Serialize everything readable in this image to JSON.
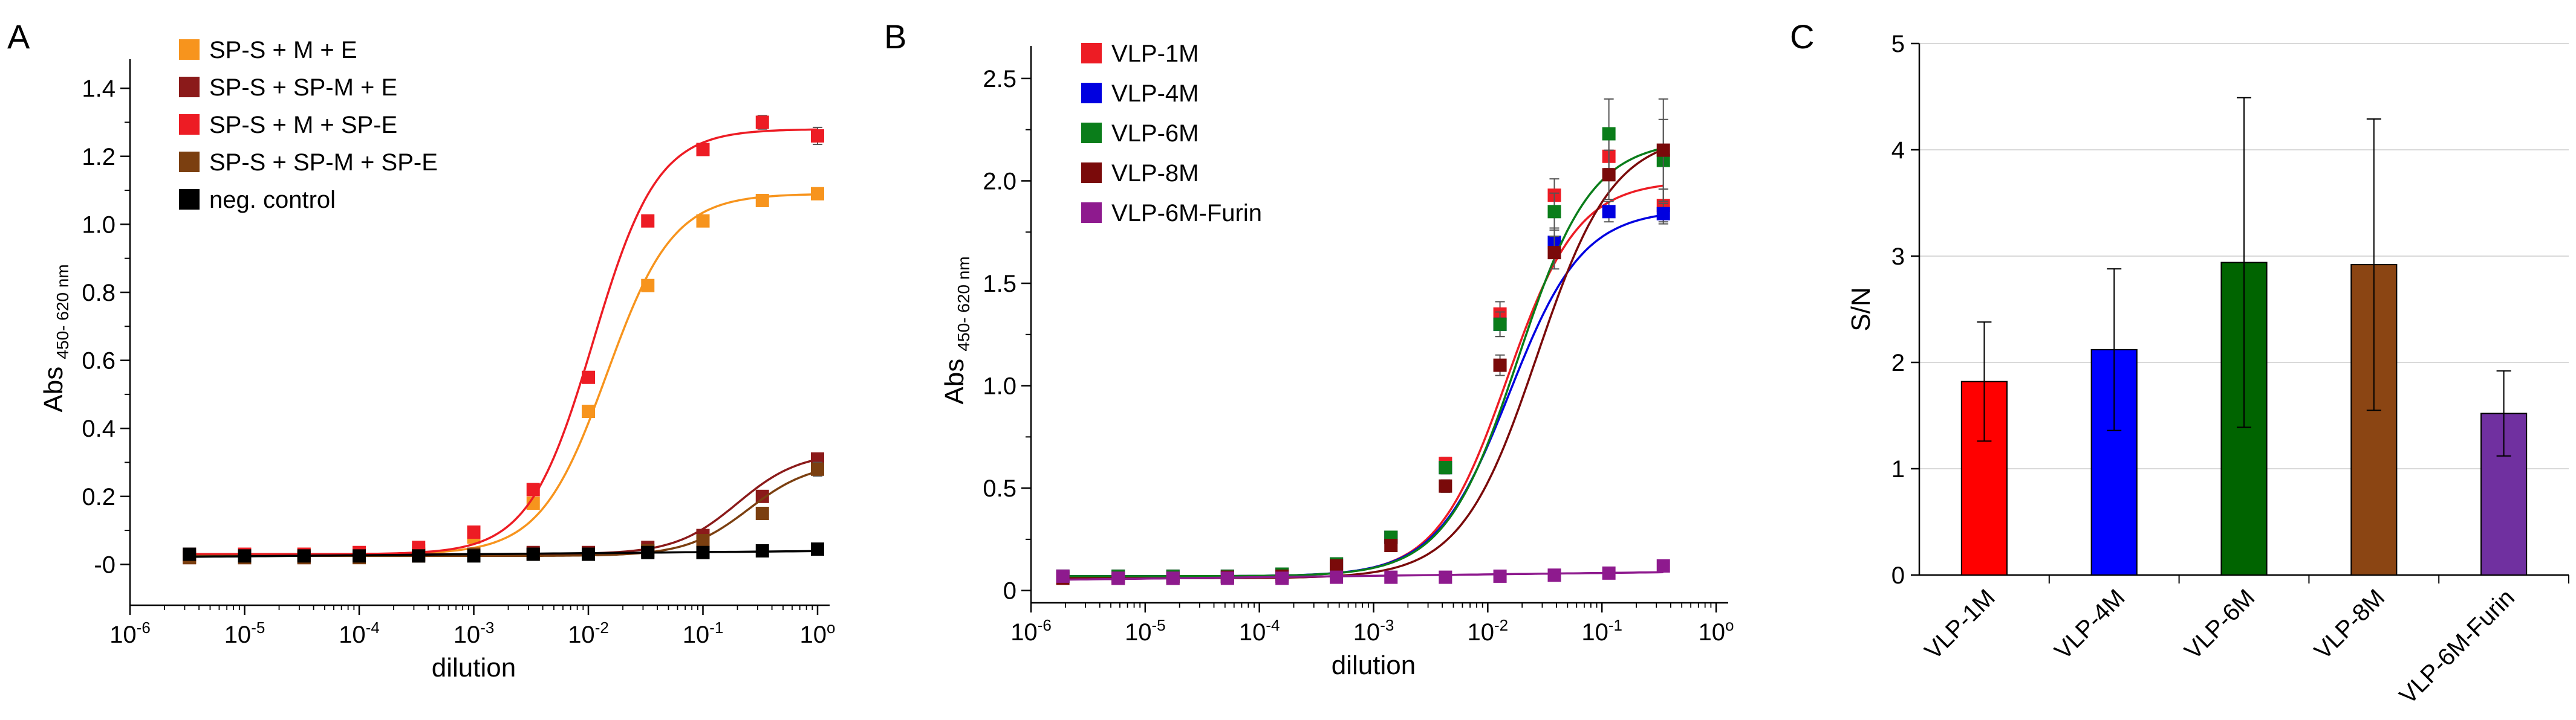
{
  "chart_data": [
    {
      "panel": "A",
      "type": "scatter",
      "xscale": "log",
      "xlabel": "dilution",
      "ylabel": "Abs",
      "ylabel_sub": "450- 620 nm",
      "xlim": [
        1e-06,
        1
      ],
      "ylim": [
        -0.12,
        1.45
      ],
      "xticks": [
        1e-06,
        1e-05,
        0.0001,
        0.001,
        0.01,
        0.1,
        1
      ],
      "xtick_bases": [
        "10",
        "10",
        "10",
        "10",
        "10",
        "10",
        "10"
      ],
      "xtick_exps": [
        "-6",
        "-5",
        "-4",
        "-3",
        "-2",
        "-1",
        "o"
      ],
      "yticks": [
        0,
        0.2,
        0.4,
        0.6,
        0.8,
        1.0,
        1.2,
        1.4
      ],
      "ytick_labels": [
        "-0",
        "0.2",
        "0.4",
        "0.6",
        "0.8",
        "1.0",
        "1.2",
        "1.4"
      ],
      "legend_position": "top-left",
      "x": [
        3.3e-06,
        1e-05,
        3.3e-05,
        0.0001,
        0.00033,
        0.001,
        0.0033,
        0.01,
        0.033,
        0.1,
        0.33,
        1
      ],
      "series": [
        {
          "name": "SP-S + M + E",
          "color": "#f7941d",
          "values": [
            0.025,
            0.025,
            0.03,
            0.03,
            0.04,
            0.08,
            0.18,
            0.45,
            0.82,
            1.01,
            1.07,
            1.09
          ],
          "err": [
            0.005,
            0.005,
            0.005,
            0.005,
            0.005,
            0.01,
            0.01,
            0.01,
            0.015,
            0.01,
            0.01,
            0.01
          ],
          "fit": {
            "bottom": 0.03,
            "top": 1.09,
            "ec50": 0.0145,
            "hill": 1.5
          }
        },
        {
          "name": "SP-S + SP-M + E",
          "color": "#8b1a1a",
          "values": [
            0.02,
            0.02,
            0.02,
            0.025,
            0.03,
            0.03,
            0.035,
            0.035,
            0.05,
            0.085,
            0.2,
            0.31
          ],
          "err": [
            0.005,
            0.005,
            0.005,
            0.005,
            0.005,
            0.005,
            0.005,
            0.005,
            0.005,
            0.01,
            0.01,
            0.015
          ],
          "fit": {
            "bottom": 0.03,
            "top": 0.33,
            "ec50": 0.2,
            "hill": 1.6
          }
        },
        {
          "name": "SP-S + M + SP-E",
          "color": "#ed1c24",
          "values": [
            0.03,
            0.03,
            0.03,
            0.035,
            0.05,
            0.095,
            0.22,
            0.55,
            1.01,
            1.22,
            1.3,
            1.26
          ],
          "err": [
            0.005,
            0.005,
            0.005,
            0.005,
            0.005,
            0.01,
            0.01,
            0.015,
            0.015,
            0.015,
            0.02,
            0.025
          ],
          "fit": {
            "bottom": 0.03,
            "top": 1.28,
            "ec50": 0.011,
            "hill": 1.55
          }
        },
        {
          "name": "SP-S + SP-M + SP-E",
          "color": "#7b3f10",
          "values": [
            0.02,
            0.02,
            0.02,
            0.02,
            0.025,
            0.03,
            0.03,
            0.03,
            0.04,
            0.07,
            0.15,
            0.28
          ],
          "err": [
            0.005,
            0.005,
            0.005,
            0.005,
            0.005,
            0.005,
            0.005,
            0.005,
            0.005,
            0.01,
            0.01,
            0.02
          ],
          "fit": {
            "bottom": 0.025,
            "top": 0.3,
            "ec50": 0.25,
            "hill": 1.6
          }
        },
        {
          "name": "neg. control",
          "color": "#000000",
          "values": [
            0.03,
            0.025,
            0.025,
            0.025,
            0.025,
            0.025,
            0.03,
            0.03,
            0.035,
            0.035,
            0.04,
            0.045
          ],
          "err": [
            0.003,
            0.003,
            0.003,
            0.003,
            0.003,
            0.003,
            0.003,
            0.003,
            0.003,
            0.003,
            0.003,
            0.003
          ],
          "fit": {
            "linear": true
          }
        }
      ]
    },
    {
      "panel": "B",
      "type": "scatter",
      "xscale": "log",
      "xlabel": "dilution",
      "ylabel": "Abs",
      "ylabel_sub": "450- 620 nm",
      "xlim": [
        1e-06,
        1
      ],
      "ylim": [
        -0.06,
        2.6
      ],
      "xticks": [
        1e-06,
        1e-05,
        0.0001,
        0.001,
        0.01,
        0.1,
        1
      ],
      "xtick_bases": [
        "10",
        "10",
        "10",
        "10",
        "10",
        "10",
        "10"
      ],
      "xtick_exps": [
        "-6",
        "-5",
        "-4",
        "-3",
        "-2",
        "-1",
        "o"
      ],
      "yticks": [
        0,
        0.5,
        1.0,
        1.5,
        2.0,
        2.5
      ],
      "ytick_labels": [
        "0",
        "0.5",
        "1.0",
        "1.5",
        "2.0",
        "2.5"
      ],
      "legend_position": "top-left",
      "x": [
        1.9e-06,
        5.8e-06,
        1.75e-05,
        5.25e-05,
        0.000158,
        0.000473,
        0.00142,
        0.00426,
        0.0128,
        0.0383,
        0.115,
        0.345
      ],
      "series": [
        {
          "name": "VLP-1M",
          "color": "#ed1c24",
          "values": [
            0.07,
            0.07,
            0.07,
            0.07,
            0.08,
            0.13,
            0.26,
            0.62,
            1.35,
            1.93,
            2.12,
            1.88
          ],
          "err": [
            0.005,
            0.005,
            0.005,
            0.005,
            0.005,
            0.01,
            0.02,
            0.03,
            0.06,
            0.08,
            0.1,
            0.08
          ],
          "fit": {
            "bottom": 0.07,
            "top": 2.0,
            "ec50": 0.0148,
            "hill": 1.4
          }
        },
        {
          "name": "VLP-4M",
          "color": "#0000e0",
          "values": [
            0.07,
            0.07,
            0.07,
            0.07,
            0.08,
            0.13,
            0.26,
            0.6,
            1.3,
            1.7,
            1.85,
            1.84
          ],
          "err": [
            0.005,
            0.005,
            0.005,
            0.005,
            0.005,
            0.01,
            0.02,
            0.03,
            0.06,
            0.07,
            0.05,
            0.05
          ],
          "fit": {
            "bottom": 0.07,
            "top": 1.86,
            "ec50": 0.0155,
            "hill": 1.35
          }
        },
        {
          "name": "VLP-6M",
          "color": "#0a7d1a",
          "values": [
            0.07,
            0.07,
            0.07,
            0.07,
            0.08,
            0.13,
            0.26,
            0.6,
            1.3,
            1.85,
            2.23,
            2.1
          ],
          "err": [
            0.005,
            0.005,
            0.005,
            0.005,
            0.005,
            0.01,
            0.02,
            0.03,
            0.06,
            0.09,
            0.17,
            0.2
          ],
          "fit": {
            "bottom": 0.07,
            "top": 2.2,
            "ec50": 0.0185,
            "hill": 1.35
          }
        },
        {
          "name": "VLP-8M",
          "color": "#7a0a0a",
          "values": [
            0.06,
            0.06,
            0.06,
            0.065,
            0.07,
            0.12,
            0.22,
            0.51,
            1.1,
            1.65,
            2.03,
            2.15
          ],
          "err": [
            0.005,
            0.005,
            0.005,
            0.005,
            0.005,
            0.01,
            0.02,
            0.03,
            0.05,
            0.08,
            0.12,
            0.25
          ],
          "fit": {
            "bottom": 0.06,
            "top": 2.23,
            "ec50": 0.027,
            "hill": 1.3
          }
        },
        {
          "name": "VLP-6M-Furin",
          "color": "#8e1a8e",
          "values": [
            0.07,
            0.06,
            0.06,
            0.06,
            0.06,
            0.065,
            0.065,
            0.065,
            0.07,
            0.075,
            0.085,
            0.12
          ],
          "err": [
            0.004,
            0.004,
            0.004,
            0.004,
            0.004,
            0.004,
            0.004,
            0.004,
            0.004,
            0.004,
            0.005,
            0.01
          ],
          "fit": {
            "linear": true
          }
        }
      ]
    },
    {
      "panel": "C",
      "type": "bar",
      "ylabel": "S/N",
      "ylim": [
        0,
        5
      ],
      "yticks": [
        0,
        1,
        2,
        3,
        4,
        5
      ],
      "grid": "y",
      "categories": [
        "VLP-1M",
        "VLP-4M",
        "VLP-6M",
        "VLP-8M",
        "VLP-6M-Furin"
      ],
      "values": [
        1.82,
        2.12,
        2.94,
        2.92,
        1.52
      ],
      "errors": [
        0.56,
        0.76,
        1.55,
        1.37,
        0.4
      ],
      "colors": [
        "#ff0000",
        "#0000ff",
        "#006400",
        "#8b4513",
        "#7030a0"
      ]
    }
  ]
}
